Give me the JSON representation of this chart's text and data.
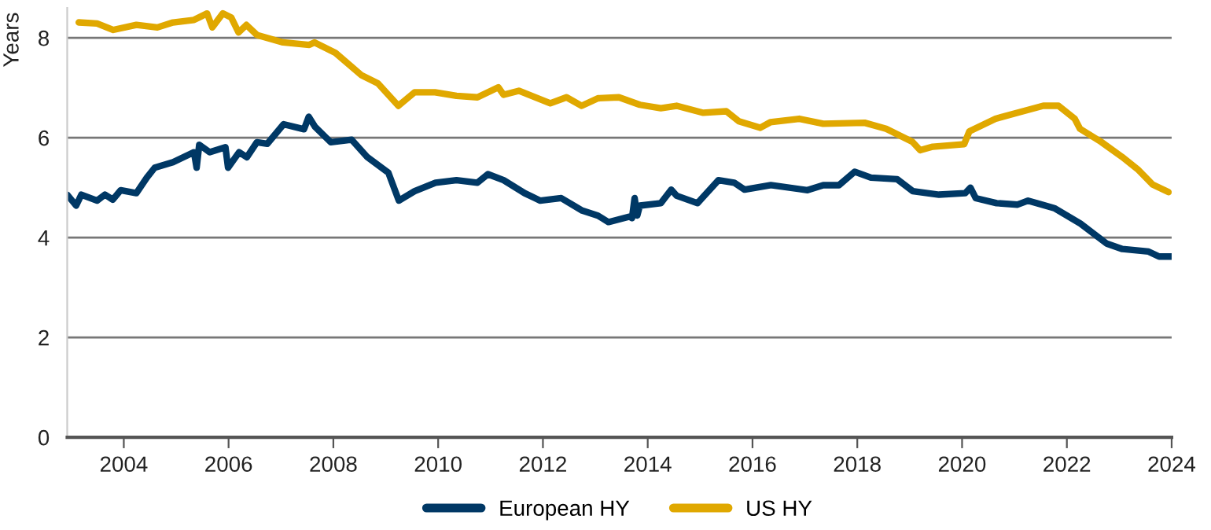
{
  "chart_data": {
    "type": "line",
    "ylabel": "Years",
    "xlim": [
      2002.92,
      2024
    ],
    "xticks": [
      2004,
      2006,
      2008,
      2010,
      2012,
      2014,
      2016,
      2018,
      2020,
      2022,
      2024
    ],
    "ylim": [
      0,
      8.6
    ],
    "yticks": [
      0,
      2,
      4,
      6,
      8
    ],
    "grid": "y",
    "legend": "bottom",
    "marker": "none",
    "line_style": "solid",
    "series": [
      {
        "name": "European HY",
        "color": "#003865",
        "x": [
          2002.92,
          2003.09,
          2003.19,
          2003.49,
          2003.64,
          2003.79,
          2003.94,
          2004.24,
          2004.44,
          2004.59,
          2004.94,
          2005.34,
          2005.39,
          2005.44,
          2005.64,
          2005.94,
          2005.99,
          2006.2,
          2006.35,
          2006.54,
          2006.74,
          2007.05,
          2007.44,
          2007.53,
          2007.65,
          2007.95,
          2008.35,
          2008.65,
          2009.05,
          2009.25,
          2009.55,
          2009.95,
          2010.35,
          2010.75,
          2010.95,
          2011.25,
          2011.65,
          2011.95,
          2012.35,
          2012.75,
          2013.05,
          2013.25,
          2013.65,
          2013.7,
          2013.75,
          2013.8,
          2013.85,
          2014.25,
          2014.45,
          2014.55,
          2014.95,
          2015.35,
          2015.65,
          2015.85,
          2016.35,
          2017.05,
          2017.35,
          2017.65,
          2017.95,
          2018.26,
          2018.76,
          2019.06,
          2019.56,
          2020.06,
          2020.16,
          2020.26,
          2020.66,
          2021.06,
          2021.26,
          2021.76,
          2022.26,
          2022.76,
          2023.06,
          2023.56,
          2023.76,
          2024.0
        ],
        "values": [
          4.86,
          4.64,
          4.86,
          4.74,
          4.86,
          4.76,
          4.95,
          4.89,
          5.2,
          5.4,
          5.51,
          5.71,
          5.4,
          5.86,
          5.71,
          5.81,
          5.4,
          5.71,
          5.61,
          5.91,
          5.88,
          6.27,
          6.17,
          6.42,
          6.22,
          5.91,
          5.96,
          5.61,
          5.3,
          4.74,
          4.93,
          5.1,
          5.15,
          5.1,
          5.27,
          5.15,
          4.89,
          4.74,
          4.79,
          4.54,
          4.44,
          4.31,
          4.42,
          4.39,
          4.79,
          4.44,
          4.64,
          4.69,
          4.96,
          4.84,
          4.69,
          5.15,
          5.1,
          4.96,
          5.05,
          4.95,
          5.05,
          5.05,
          5.32,
          5.2,
          5.17,
          4.93,
          4.86,
          4.89,
          5.0,
          4.79,
          4.69,
          4.66,
          4.74,
          4.59,
          4.28,
          3.88,
          3.77,
          3.72,
          3.62,
          3.62
        ]
      },
      {
        "name": "US HY",
        "color": "#e0a800",
        "x": [
          2003.14,
          2003.49,
          2003.8,
          2004.24,
          2004.64,
          2004.94,
          2005.34,
          2005.59,
          2005.69,
          2005.89,
          2006.05,
          2006.19,
          2006.34,
          2006.54,
          2007.04,
          2007.54,
          2007.64,
          2008.04,
          2008.54,
          2008.85,
          2009.24,
          2009.55,
          2009.94,
          2010.35,
          2010.75,
          2011.15,
          2011.25,
          2011.54,
          2012.14,
          2012.45,
          2012.74,
          2013.05,
          2013.45,
          2013.85,
          2014.25,
          2014.55,
          2015.06,
          2015.5,
          2015.74,
          2016.15,
          2016.34,
          2016.89,
          2017.35,
          2018.14,
          2018.55,
          2019.05,
          2019.2,
          2019.44,
          2020.04,
          2020.14,
          2020.64,
          2021.05,
          2021.55,
          2021.84,
          2022.15,
          2022.25,
          2022.65,
          2023.05,
          2023.35,
          2023.64,
          2023.94
        ],
        "values": [
          8.31,
          8.29,
          8.16,
          8.26,
          8.21,
          8.31,
          8.36,
          8.49,
          8.21,
          8.49,
          8.41,
          8.11,
          8.26,
          8.06,
          7.91,
          7.86,
          7.91,
          7.7,
          7.25,
          7.09,
          6.64,
          6.91,
          6.91,
          6.84,
          6.81,
          7.01,
          6.86,
          6.94,
          6.69,
          6.81,
          6.64,
          6.79,
          6.81,
          6.66,
          6.59,
          6.64,
          6.5,
          6.53,
          6.33,
          6.2,
          6.31,
          6.38,
          6.28,
          6.3,
          6.18,
          5.92,
          5.75,
          5.82,
          5.87,
          6.13,
          6.38,
          6.5,
          6.64,
          6.64,
          6.38,
          6.18,
          5.92,
          5.62,
          5.37,
          5.06,
          4.91
        ]
      }
    ]
  }
}
